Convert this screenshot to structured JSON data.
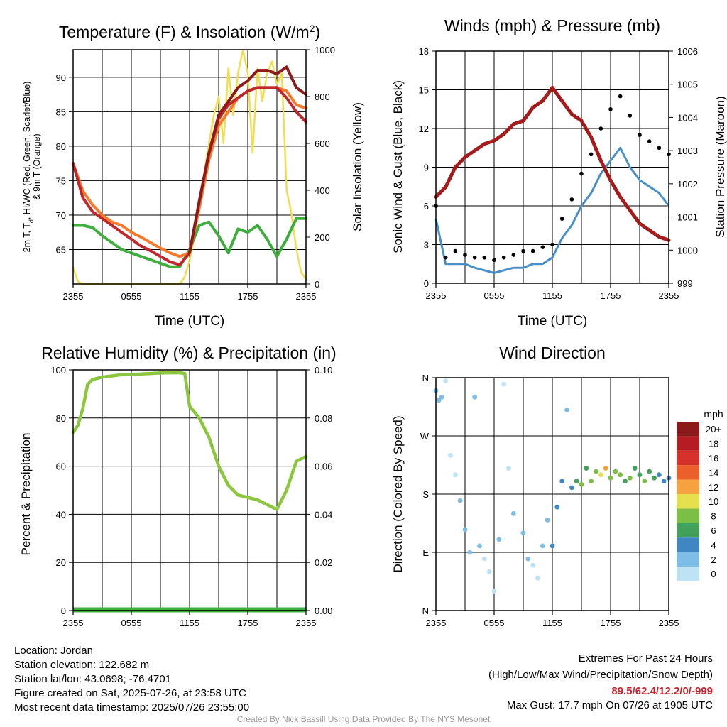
{
  "temp_panel": {
    "title": "Temperature (F) & Insolation (W/m",
    "title_sup": "2",
    "title_end": ")",
    "xlabel": "Time (UTC)",
    "ylabel_left_line1": "2m T, T",
    "ylabel_left_sub": "d",
    "ylabel_left_line1_end": ", HI/WC (Red, Green, Scarlet/Blue)",
    "ylabel_left_line2": "& 9m T (Orange)",
    "ylabel_right": "Solar Insolation (Yellow)",
    "x_ticks": [
      "2355",
      "0555",
      "1155",
      "1755",
      "2355"
    ],
    "y_left_ticks": [
      "65",
      "70",
      "75",
      "80",
      "85",
      "90"
    ],
    "y_right_ticks": [
      "0",
      "200",
      "400",
      "600",
      "800",
      "1000"
    ]
  },
  "wind_panel": {
    "title": "Winds (mph) & Pressure (mb)",
    "xlabel": "Time (UTC)",
    "ylabel_left": "Sonic Wind & Gust (Blue, Black)",
    "ylabel_right": "Station Pressure (Maroon)",
    "x_ticks": [
      "2355",
      "0555",
      "1155",
      "1755",
      "2355"
    ],
    "y_left_ticks": [
      "0",
      "3",
      "6",
      "9",
      "12",
      "15",
      "18"
    ],
    "y_right_ticks": [
      "999",
      "1000",
      "1001",
      "1002",
      "1003",
      "1004",
      "1005",
      "1006"
    ]
  },
  "rh_panel": {
    "title": "Relative Humidity (%) & Precipitation (in)",
    "ylabel_left": "Percent & Precipitation",
    "x_ticks": [
      "2355",
      "0555",
      "1155",
      "1755",
      "2355"
    ],
    "y_left_ticks": [
      "0",
      "20",
      "40",
      "60",
      "80",
      "100"
    ],
    "y_right_ticks": [
      "0.00",
      "0.02",
      "0.04",
      "0.06",
      "0.08",
      "0.10"
    ]
  },
  "dir_panel": {
    "title": "Wind Direction",
    "ylabel_left": "Direction (Colored By Speed)",
    "x_ticks": [
      "2355",
      "0555",
      "1155",
      "1755",
      "2355"
    ],
    "y_ticks": [
      "N",
      "E",
      "S",
      "W",
      "N"
    ],
    "legend_title": "mph",
    "legend_labels": [
      "0",
      "2",
      "4",
      "6",
      "8",
      "10",
      "12",
      "14",
      "16",
      "18",
      "20+"
    ],
    "legend_colors": [
      "#bde3f5",
      "#7ebde6",
      "#3f86c2",
      "#41a05a",
      "#7bbf45",
      "#e6e04f",
      "#f7a240",
      "#ec5f2a",
      "#d8302a",
      "#b51d22",
      "#8c1a1a"
    ]
  },
  "info": {
    "location": "Location: Jordan",
    "elevation": "Station elevation: 122.682 m",
    "latlon": "Station lat/lon: 43.0698; -76.4701",
    "created": "Figure created on Sat, 2025-07-26, at 23:58 UTC",
    "recent": "Most recent data timestamp: 2025/07/26 23:55:00",
    "extremes_title": "Extremes For Past 24 Hours",
    "extremes_subtitle": "(High/Low/Max Wind/Precipitation/Snow Depth)",
    "extremes_values": "89.5/62.4/12.2/0/-999",
    "max_gust": "Max Gust: 17.7 mph On 07/26 at 1905 UTC",
    "credit": "Created By Nick Bassill Using Data Provided By The NYS Mesonet"
  },
  "colors": {
    "temp": "#c0282d",
    "dewpoint": "#3fae3f",
    "heat_index": "#8c1a1a",
    "temp_9m": "#f57a2a",
    "insolation": "#f2dc50",
    "wind": "#4a90c8",
    "gust": "#000000",
    "pressure": "#a51c1c",
    "rh": "#8cc63f",
    "precip": "#3fae3f"
  },
  "chart_data": [
    {
      "type": "line",
      "x_unit": "hours since 2355 UTC",
      "x_ticks": [
        "2355",
        "0555",
        "1155",
        "1755",
        "2355"
      ],
      "ylim": [
        60,
        94
      ],
      "y2lim": [
        0,
        1000
      ],
      "series": [
        {
          "name": "2m T",
          "axis": "left",
          "color": "#c0282d",
          "x": [
            0,
            1,
            2,
            3,
            4,
            5,
            6,
            7,
            8,
            9,
            10,
            11,
            12,
            13,
            14,
            15,
            16,
            17,
            18,
            19,
            20,
            21,
            22,
            23,
            24
          ],
          "y": [
            77.5,
            72.5,
            70.5,
            69.5,
            68.5,
            67.5,
            66.5,
            65.5,
            64.8,
            64,
            63.2,
            62.8,
            64.5,
            72,
            79,
            84,
            86,
            87,
            88,
            88.5,
            88.5,
            88.5,
            87,
            85,
            83.5
          ]
        },
        {
          "name": "Td",
          "axis": "left",
          "color": "#3fae3f",
          "x": [
            0,
            1,
            2,
            3,
            4,
            5,
            6,
            7,
            8,
            9,
            10,
            11,
            12,
            13,
            14,
            15,
            16,
            17,
            18,
            19,
            20,
            21,
            22,
            23,
            24
          ],
          "y": [
            68.5,
            68.5,
            68.2,
            67,
            66,
            65,
            64.5,
            64,
            63.5,
            63,
            62.5,
            62.5,
            65,
            68.5,
            69,
            67,
            64.5,
            68,
            67.5,
            68.5,
            66.5,
            64,
            66.5,
            69.5,
            69.5
          ]
        },
        {
          "name": "HI/WC",
          "axis": "left",
          "color": "#8c1a1a",
          "x": [
            12,
            13,
            14,
            15,
            16,
            17,
            18,
            19,
            20,
            21,
            22,
            23,
            24
          ],
          "y": [
            64.5,
            72,
            79,
            84.5,
            86.5,
            88.5,
            89.5,
            91,
            91,
            90.5,
            91.5,
            88.5,
            87.5
          ]
        },
        {
          "name": "9m T",
          "axis": "left",
          "color": "#f57a2a",
          "x": [
            0,
            1,
            2,
            3,
            4,
            5,
            6,
            7,
            8,
            9,
            10,
            11,
            12,
            13,
            14,
            15,
            16,
            17,
            18,
            19,
            20,
            21,
            22,
            23,
            24
          ],
          "y": [
            77.5,
            73.5,
            71.5,
            70,
            69,
            68.5,
            67.5,
            66.8,
            66,
            65.2,
            64.5,
            64,
            64.5,
            71,
            78,
            83,
            85,
            87,
            88,
            88.5,
            88.5,
            88.5,
            88,
            86,
            85.5
          ]
        },
        {
          "name": "Solar Insolation",
          "axis": "right",
          "color": "#f2dc50",
          "x": [
            0,
            0.5,
            1,
            2,
            4,
            6,
            8,
            10,
            11,
            11.5,
            12,
            12.5,
            13,
            14,
            14.5,
            15,
            15.5,
            16,
            16.5,
            17,
            17.5,
            18,
            18.5,
            19,
            19.5,
            20,
            20.5,
            21,
            21.5,
            22,
            22.5,
            23,
            23.5,
            24
          ],
          "y": [
            70,
            10,
            0,
            0,
            0,
            0,
            0,
            0,
            0,
            30,
            100,
            200,
            340,
            600,
            720,
            800,
            600,
            920,
            720,
            900,
            1010,
            900,
            560,
            920,
            780,
            900,
            950,
            850,
            900,
            400,
            300,
            150,
            50,
            20
          ]
        }
      ]
    },
    {
      "type": "line",
      "x_unit": "hours since 2355 UTC",
      "x_ticks": [
        "2355",
        "0555",
        "1155",
        "1755",
        "2355"
      ],
      "ylim": [
        0,
        18
      ],
      "y2lim": [
        999,
        1006
      ],
      "series": [
        {
          "name": "Sonic Wind",
          "axis": "left",
          "color": "#4a90c8",
          "x": [
            0,
            1,
            2,
            3,
            4,
            5,
            6,
            7,
            8,
            9,
            10,
            11,
            12,
            13,
            14,
            15,
            16,
            17,
            18,
            19,
            20,
            21,
            22,
            23,
            24
          ],
          "y": [
            5,
            1.5,
            1.5,
            1.5,
            1.2,
            1,
            0.8,
            1,
            1.2,
            1.2,
            1.5,
            1.5,
            2,
            3.5,
            4.5,
            6,
            7,
            8.5,
            9.5,
            10.5,
            9,
            8,
            7.5,
            7,
            6
          ]
        },
        {
          "name": "Gust",
          "axis": "left",
          "color": "#000000",
          "x": [
            0,
            1,
            2,
            3,
            4,
            5,
            6,
            7,
            8,
            9,
            10,
            11,
            12,
            13,
            14,
            15,
            16,
            17,
            18,
            19,
            20,
            21,
            22,
            23,
            24
          ],
          "y": [
            6,
            2,
            2.5,
            2.2,
            2,
            2,
            1.8,
            2,
            2.2,
            2.5,
            2.5,
            2.8,
            3,
            5,
            6.5,
            8.5,
            10,
            12,
            13.5,
            14.5,
            13,
            11.5,
            11,
            10.5,
            10
          ]
        },
        {
          "name": "Station Pressure",
          "axis": "right",
          "color": "#a51c1c",
          "x": [
            0,
            1,
            2,
            3,
            4,
            5,
            6,
            7,
            8,
            9,
            10,
            11,
            12,
            13,
            14,
            15,
            16,
            17,
            18,
            19,
            20,
            21,
            22,
            23,
            24
          ],
          "y": [
            1001.6,
            1001.9,
            1002.5,
            1002.8,
            1003,
            1003.2,
            1003.3,
            1003.5,
            1003.8,
            1003.9,
            1004.3,
            1004.5,
            1004.9,
            1004.5,
            1004.1,
            1003.9,
            1003.4,
            1002.7,
            1002.1,
            1001.6,
            1001.2,
            1000.8,
            1000.6,
            1000.4,
            1000.3
          ]
        }
      ]
    },
    {
      "type": "line",
      "x_unit": "hours since 2355 UTC",
      "x_ticks": [
        "2355",
        "0555",
        "1155",
        "1755",
        "2355"
      ],
      "ylim": [
        0,
        100
      ],
      "y2lim": [
        0,
        0.1
      ],
      "series": [
        {
          "name": "Relative Humidity",
          "axis": "left",
          "color": "#8cc63f",
          "x": [
            0,
            0.5,
            1,
            1.5,
            2,
            3,
            4,
            5,
            6,
            7,
            8,
            9,
            10,
            11,
            11.5,
            12,
            13,
            14,
            15,
            16,
            17,
            18,
            19,
            20,
            21,
            22,
            23,
            24
          ],
          "y": [
            74,
            77,
            84,
            94,
            96,
            97,
            97.5,
            98,
            98,
            98.3,
            98.5,
            98.7,
            98.8,
            98.8,
            98.5,
            85,
            80,
            72,
            60,
            52,
            48,
            47,
            46,
            44,
            42,
            50,
            62,
            64
          ]
        },
        {
          "name": "Precipitation",
          "axis": "right",
          "color": "#3fae3f",
          "x": [
            0,
            24
          ],
          "y": [
            0,
            0
          ]
        }
      ]
    },
    {
      "type": "scatter",
      "x_unit": "hours since 2355 UTC",
      "x_ticks": [
        "2355",
        "0555",
        "1155",
        "1755",
        "2355"
      ],
      "ylim": [
        0,
        360
      ],
      "y_ticks": [
        "N",
        "E",
        "S",
        "W",
        "N"
      ],
      "color_by": "wind speed (mph)",
      "legend_labels": [
        "0",
        "2",
        "4",
        "6",
        "8",
        "10",
        "12",
        "14",
        "16",
        "18",
        "20+"
      ],
      "points": [
        {
          "x": 0,
          "y": 340,
          "v": 1
        },
        {
          "x": 0.3,
          "y": 325,
          "v": 1
        },
        {
          "x": 0.6,
          "y": 330,
          "v": 2
        },
        {
          "x": 1,
          "y": 355,
          "v": 0
        },
        {
          "x": 1.5,
          "y": 240,
          "v": 0
        },
        {
          "x": 2,
          "y": 210,
          "v": 0
        },
        {
          "x": 2.5,
          "y": 170,
          "v": 1
        },
        {
          "x": 3,
          "y": 125,
          "v": 1
        },
        {
          "x": 3.5,
          "y": 90,
          "v": 2
        },
        {
          "x": 4,
          "y": 330,
          "v": 2
        },
        {
          "x": 4.5,
          "y": 100,
          "v": 1
        },
        {
          "x": 5,
          "y": 80,
          "v": 0
        },
        {
          "x": 5.5,
          "y": 60,
          "v": 0
        },
        {
          "x": 6,
          "y": 30,
          "v": 0
        },
        {
          "x": 6.5,
          "y": 110,
          "v": 1
        },
        {
          "x": 7,
          "y": 350,
          "v": 0
        },
        {
          "x": 7.5,
          "y": 220,
          "v": 0
        },
        {
          "x": 8,
          "y": 150,
          "v": 1
        },
        {
          "x": 9,
          "y": 120,
          "v": 1
        },
        {
          "x": 9.5,
          "y": 80,
          "v": 1
        },
        {
          "x": 10,
          "y": 70,
          "v": 0
        },
        {
          "x": 10.5,
          "y": 50,
          "v": 0
        },
        {
          "x": 11,
          "y": 100,
          "v": 2
        },
        {
          "x": 11.5,
          "y": 140,
          "v": 2
        },
        {
          "x": 12,
          "y": 100,
          "v": 3
        },
        {
          "x": 12.5,
          "y": 160,
          "v": 3
        },
        {
          "x": 13,
          "y": 200,
          "v": 4
        },
        {
          "x": 13.5,
          "y": 310,
          "v": 2
        },
        {
          "x": 14,
          "y": 190,
          "v": 3
        },
        {
          "x": 14.5,
          "y": 200,
          "v": 5
        },
        {
          "x": 15,
          "y": 195,
          "v": 7
        },
        {
          "x": 15.5,
          "y": 220,
          "v": 6
        },
        {
          "x": 16,
          "y": 200,
          "v": 7
        },
        {
          "x": 16.5,
          "y": 215,
          "v": 8
        },
        {
          "x": 17,
          "y": 210,
          "v": 9
        },
        {
          "x": 17.5,
          "y": 220,
          "v": 12
        },
        {
          "x": 18,
          "y": 205,
          "v": 8
        },
        {
          "x": 18.5,
          "y": 215,
          "v": 7
        },
        {
          "x": 19,
          "y": 210,
          "v": 8
        },
        {
          "x": 19.5,
          "y": 200,
          "v": 6
        },
        {
          "x": 20,
          "y": 205,
          "v": 7
        },
        {
          "x": 20.5,
          "y": 220,
          "v": 5
        },
        {
          "x": 21,
          "y": 210,
          "v": 6
        },
        {
          "x": 21.5,
          "y": 200,
          "v": 7
        },
        {
          "x": 22,
          "y": 215,
          "v": 6
        },
        {
          "x": 22.5,
          "y": 205,
          "v": 5
        },
        {
          "x": 23,
          "y": 210,
          "v": 4
        },
        {
          "x": 23.5,
          "y": 200,
          "v": 4
        },
        {
          "x": 24,
          "y": 205,
          "v": 4
        }
      ]
    }
  ]
}
